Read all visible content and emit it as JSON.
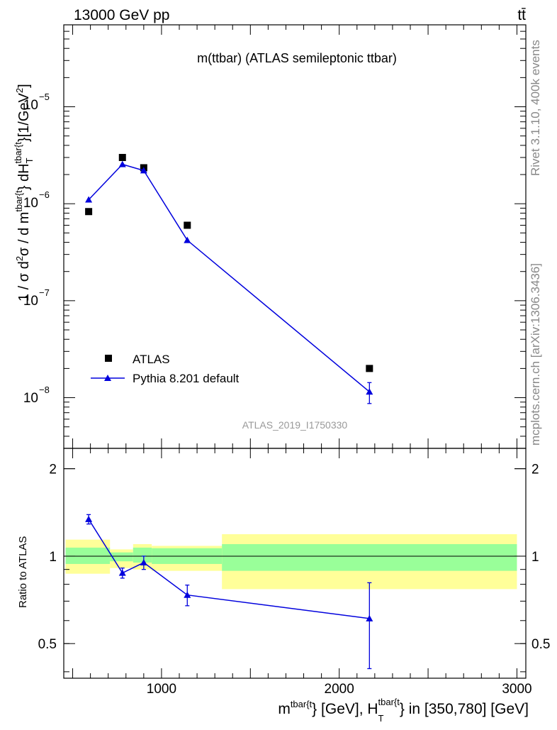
{
  "header": {
    "energy_label": "13000 GeV pp",
    "process_label": "tt̄"
  },
  "side_labels": {
    "rivet": "Rivet 3.1.10,  400k events",
    "mcplots": "mcplots.cern.ch [arXiv:1306.3436]"
  },
  "chart_data": [
    {
      "type": "scatter",
      "title": "m(ttbar) (ATLAS semileptonic ttbar)",
      "analysis_label": "ATLAS_2019_I1750330",
      "ylabel_parts": {
        "a": "1 / σ d",
        "a_sup": "2",
        "b": "σ / d m",
        "b_sup": "tbar{t",
        "c": "} dH",
        "c_sub": "T",
        "c_sup": "tbar{t",
        "d": "}[1/GeV",
        "d_sup": "2",
        "e": "]"
      },
      "y_scale": "log",
      "ylim": [
        3e-09,
        7e-05
      ],
      "xlim": [
        450,
        3050
      ],
      "y_tick_labels": [
        {
          "value": 1e-05,
          "base": "10",
          "exp": "−5"
        },
        {
          "value": 1e-06,
          "base": "10",
          "exp": "−6"
        },
        {
          "value": 1e-07,
          "base": "10",
          "exp": "−7"
        },
        {
          "value": 1e-08,
          "base": "10",
          "exp": "−8"
        }
      ],
      "legend_position": "bottom-left",
      "series": [
        {
          "name": "ATLAS",
          "marker": "square",
          "color": "#000000",
          "x": [
            590,
            780,
            900,
            1145,
            2170
          ],
          "y": [
            8.3e-07,
            3e-06,
            2.35e-06,
            6e-07,
            2e-08
          ]
        },
        {
          "name": "Pythia 8.201 default",
          "marker": "triangle",
          "color": "#0000dd",
          "x": [
            590,
            780,
            900,
            1145,
            2170
          ],
          "y": [
            1.1e-06,
            2.55e-06,
            2.2e-06,
            4.2e-07,
            1.15e-08
          ],
          "y_err": [
            5e-08,
            7e-08,
            7e-08,
            2e-08,
            2.8e-09
          ]
        }
      ]
    },
    {
      "type": "scatter",
      "ylabel": "Ratio to ATLAS",
      "xlabel_parts": {
        "a": "m",
        "a_sup": "tbar{t",
        "b": "} [GeV], H",
        "b_sub": "T",
        "b_sup": "tbar{t",
        "c": "} in [350,780] [GeV]"
      },
      "y_scale": "log",
      "ylim": [
        0.38,
        2.35
      ],
      "xlim": [
        450,
        3050
      ],
      "x_ticks": [
        1000,
        2000,
        3000
      ],
      "y_ticks": [
        2,
        1,
        0.5
      ],
      "reference_line": 1,
      "bands": [
        {
          "x": [
            460,
            710
          ],
          "green": [
            0.94,
            1.07
          ],
          "yellow": [
            0.87,
            1.14
          ]
        },
        {
          "x": [
            710,
            840
          ],
          "green": [
            0.96,
            1.03
          ],
          "yellow": [
            0.91,
            1.055
          ]
        },
        {
          "x": [
            840,
            945
          ],
          "green": [
            0.95,
            1.07
          ],
          "yellow": [
            0.9,
            1.1
          ]
        },
        {
          "x": [
            945,
            1340
          ],
          "green": [
            0.94,
            1.065
          ],
          "yellow": [
            0.89,
            1.085
          ]
        },
        {
          "x": [
            1340,
            3000
          ],
          "green": [
            0.89,
            1.1
          ],
          "yellow": [
            0.77,
            1.19
          ]
        }
      ],
      "series": [
        {
          "name": "Pythia 8.201 default",
          "color": "#0000dd",
          "x": [
            590,
            780,
            900,
            1145,
            2170
          ],
          "y": [
            1.34,
            0.875,
            0.95,
            0.735,
            0.61
          ],
          "y_err": [
            0.05,
            0.035,
            0.05,
            0.06,
            0.2
          ]
        }
      ]
    }
  ]
}
